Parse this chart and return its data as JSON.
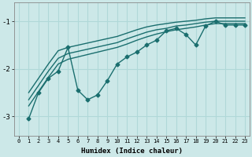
{
  "xlabel": "Humidex (Indice chaleur)",
  "ylabel": "",
  "background_color": "#cce8e8",
  "grid_color": "#b0d8d8",
  "line_color": "#1a6e6e",
  "xlim": [
    -0.5,
    23.5
  ],
  "ylim": [
    -3.4,
    -0.6
  ],
  "yticks": [
    -3,
    -2,
    -1
  ],
  "xticks": [
    0,
    1,
    2,
    3,
    4,
    5,
    6,
    7,
    8,
    9,
    10,
    11,
    12,
    13,
    14,
    15,
    16,
    17,
    18,
    19,
    20,
    21,
    22,
    23
  ],
  "series": [
    {
      "x": [
        1,
        2,
        3,
        4,
        5,
        6,
        7,
        8,
        9,
        10,
        11,
        12,
        13,
        14,
        15,
        16,
        17,
        18,
        19,
        20,
        21,
        22,
        23
      ],
      "y": [
        -3.05,
        -2.5,
        -2.2,
        -2.05,
        -1.55,
        -2.45,
        -2.65,
        -2.55,
        -2.25,
        -1.9,
        -1.75,
        -1.65,
        -1.5,
        -1.4,
        -1.2,
        -1.15,
        -1.28,
        -1.5,
        -1.1,
        -1.0,
        -1.08,
        -1.08,
        -1.08
      ],
      "marker": "D",
      "markersize": 2.5,
      "linewidth": 1.0
    },
    {
      "x": [
        1,
        2,
        3,
        4,
        5,
        10,
        11,
        12,
        13,
        14,
        15,
        16,
        17,
        18,
        19,
        20,
        21,
        22,
        23
      ],
      "y": [
        -2.5,
        -2.2,
        -1.9,
        -1.62,
        -1.55,
        -1.32,
        -1.25,
        -1.18,
        -1.12,
        -1.08,
        -1.05,
        -1.02,
        -1.0,
        -0.98,
        -0.95,
        -0.93,
        -0.93,
        -0.93,
        -0.93
      ],
      "marker": null,
      "markersize": 0,
      "linewidth": 1.0
    },
    {
      "x": [
        1,
        2,
        3,
        4,
        5,
        10,
        11,
        12,
        13,
        14,
        15,
        16,
        17,
        18,
        19,
        20,
        21,
        22,
        23
      ],
      "y": [
        -2.65,
        -2.35,
        -2.05,
        -1.78,
        -1.68,
        -1.45,
        -1.37,
        -1.3,
        -1.23,
        -1.18,
        -1.15,
        -1.1,
        -1.08,
        -1.05,
        -1.02,
        -1.0,
        -1.0,
        -1.0,
        -1.0
      ],
      "marker": null,
      "markersize": 0,
      "linewidth": 1.0
    },
    {
      "x": [
        1,
        2,
        3,
        4,
        5,
        10,
        11,
        12,
        13,
        14,
        15,
        16,
        17,
        18,
        19,
        20,
        21,
        22,
        23
      ],
      "y": [
        -2.78,
        -2.48,
        -2.18,
        -1.9,
        -1.8,
        -1.55,
        -1.48,
        -1.4,
        -1.33,
        -1.27,
        -1.22,
        -1.18,
        -1.15,
        -1.12,
        -1.08,
        -1.05,
        -1.05,
        -1.05,
        -1.05
      ],
      "marker": null,
      "markersize": 0,
      "linewidth": 1.0
    }
  ]
}
